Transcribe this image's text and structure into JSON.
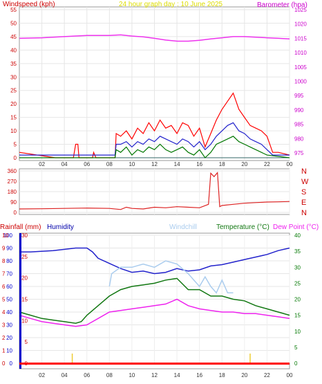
{
  "header": {
    "windspeed_label": "Windspeed (kph)",
    "graph_title": "24 hour graph day : 10 June 2025",
    "barometer_label": "Barometer (hpa)"
  },
  "lower_header": {
    "rainfall_label": "Rainfall (mm)",
    "humidity_label": "Humidity",
    "windchill_label": "Windchill",
    "temperature_label": "Temperature (°C)",
    "dewpoint_label": "Dew Point (°C)"
  },
  "colors": {
    "wind_gust": "#ff0000",
    "wind_avg": "#2222cc",
    "wind_low": "#007700",
    "barometer": "#ee33ee",
    "direction": "#dd2222",
    "humidity": "#2222cc",
    "windchill": "#aaccee",
    "temperature": "#117711",
    "dewpoint": "#ee22ee",
    "rain": "#ff0000",
    "axis_red": "#cc0000",
    "axis_pink": "#cc00cc",
    "axis_blue": "#0000cc",
    "axis_green": "#007700"
  },
  "chart_data": [
    {
      "type": "line",
      "name": "wind_and_barometer",
      "x_ticks": [
        "02",
        "04",
        "06",
        "08",
        "10",
        "12",
        "14",
        "16",
        "18",
        "20",
        "22",
        "00"
      ],
      "y_left_ticks": [
        "0",
        "5",
        "10",
        "15",
        "20",
        "25",
        "30",
        "35",
        "40",
        "45",
        "50",
        "55"
      ],
      "y_right_ticks": [
        "975",
        "980",
        "985",
        "990",
        "995",
        "1000",
        "1005",
        "1010",
        "1015",
        "1020",
        "1025"
      ],
      "ylim_left": [
        0,
        55
      ],
      "ylim_right": [
        975,
        1025
      ],
      "wind_gust": [
        [
          0,
          2
        ],
        [
          3.2,
          0
        ],
        [
          4.8,
          0
        ],
        [
          5.0,
          5
        ],
        [
          5.2,
          5
        ],
        [
          5.3,
          0
        ],
        [
          6.5,
          0
        ],
        [
          6.6,
          2
        ],
        [
          6.8,
          0
        ],
        [
          8.5,
          0
        ],
        [
          8.6,
          9
        ],
        [
          9,
          8
        ],
        [
          9.5,
          10
        ],
        [
          10,
          7
        ],
        [
          10.5,
          11
        ],
        [
          11,
          9
        ],
        [
          11.5,
          13
        ],
        [
          12,
          10
        ],
        [
          12.5,
          14
        ],
        [
          13,
          11
        ],
        [
          13.5,
          12
        ],
        [
          14,
          9
        ],
        [
          14.5,
          13
        ],
        [
          15,
          12
        ],
        [
          15.5,
          8
        ],
        [
          16,
          11
        ],
        [
          16.5,
          4
        ],
        [
          17,
          9
        ],
        [
          17.5,
          14
        ],
        [
          18,
          18
        ],
        [
          18.5,
          21
        ],
        [
          19,
          24
        ],
        [
          19.5,
          18
        ],
        [
          20,
          15
        ],
        [
          20.5,
          12
        ],
        [
          21,
          11
        ],
        [
          21.5,
          10
        ],
        [
          22,
          8
        ],
        [
          22.5,
          2
        ],
        [
          23,
          2
        ],
        [
          24,
          1
        ]
      ],
      "wind_avg": [
        [
          0,
          1
        ],
        [
          8.5,
          1
        ],
        [
          8.6,
          5
        ],
        [
          9,
          5
        ],
        [
          9.5,
          6
        ],
        [
          10,
          4
        ],
        [
          10.5,
          6
        ],
        [
          11,
          5
        ],
        [
          11.5,
          7
        ],
        [
          12,
          6
        ],
        [
          12.5,
          8
        ],
        [
          13,
          7
        ],
        [
          13.5,
          6
        ],
        [
          14,
          5
        ],
        [
          14.5,
          7
        ],
        [
          15,
          6
        ],
        [
          15.5,
          4
        ],
        [
          16,
          6
        ],
        [
          16.5,
          3
        ],
        [
          17,
          5
        ],
        [
          17.5,
          8
        ],
        [
          18,
          10
        ],
        [
          18.5,
          12
        ],
        [
          19,
          13
        ],
        [
          19.5,
          10
        ],
        [
          20,
          9
        ],
        [
          20.5,
          7
        ],
        [
          21,
          6
        ],
        [
          21.5,
          5
        ],
        [
          22,
          3
        ],
        [
          22.5,
          1
        ],
        [
          24,
          1
        ]
      ],
      "wind_low": [
        [
          0,
          0
        ],
        [
          8.5,
          0
        ],
        [
          8.6,
          3
        ],
        [
          9,
          2
        ],
        [
          9.5,
          4
        ],
        [
          10,
          1
        ],
        [
          10.5,
          3
        ],
        [
          11,
          2
        ],
        [
          11.5,
          4
        ],
        [
          12,
          3
        ],
        [
          12.5,
          5
        ],
        [
          13,
          3
        ],
        [
          13.5,
          2
        ],
        [
          14,
          3
        ],
        [
          14.5,
          4
        ],
        [
          15,
          2
        ],
        [
          15.5,
          1
        ],
        [
          16,
          3
        ],
        [
          16.5,
          0
        ],
        [
          17,
          2
        ],
        [
          17.5,
          5
        ],
        [
          18,
          6
        ],
        [
          18.5,
          7
        ],
        [
          19,
          8
        ],
        [
          19.5,
          6
        ],
        [
          20,
          5
        ],
        [
          20.5,
          4
        ],
        [
          21,
          3
        ],
        [
          21.5,
          2
        ],
        [
          22,
          1
        ],
        [
          24,
          0
        ]
      ],
      "barometer": [
        [
          0,
          1015.0
        ],
        [
          2,
          1015.2
        ],
        [
          4,
          1015.6
        ],
        [
          6,
          1016.0
        ],
        [
          8,
          1016.0
        ],
        [
          9,
          1016.2
        ],
        [
          10,
          1015.8
        ],
        [
          11,
          1015.5
        ],
        [
          12,
          1015.0
        ],
        [
          13,
          1014.4
        ],
        [
          14,
          1014.0
        ],
        [
          15,
          1014.0
        ],
        [
          16,
          1014.3
        ],
        [
          17,
          1014.8
        ],
        [
          18,
          1015.2
        ],
        [
          19,
          1015.6
        ],
        [
          20,
          1015.6
        ],
        [
          21,
          1015.4
        ],
        [
          22,
          1015.2
        ],
        [
          23,
          1015.0
        ],
        [
          24,
          1014.8
        ]
      ]
    },
    {
      "type": "line",
      "name": "wind_direction",
      "y_left_ticks": [
        "0",
        "90",
        "180",
        "270",
        "360"
      ],
      "y_right_ticks": [
        "N",
        "E",
        "S",
        "W",
        "N"
      ],
      "ylim": [
        0,
        360
      ],
      "direction": [
        [
          0,
          30
        ],
        [
          2,
          32
        ],
        [
          4,
          35
        ],
        [
          6,
          38
        ],
        [
          8,
          35
        ],
        [
          9,
          25
        ],
        [
          9.5,
          45
        ],
        [
          10,
          35
        ],
        [
          11,
          30
        ],
        [
          12,
          45
        ],
        [
          13,
          40
        ],
        [
          14,
          50
        ],
        [
          15,
          45
        ],
        [
          16,
          40
        ],
        [
          16.8,
          70
        ],
        [
          17.0,
          340
        ],
        [
          17.3,
          310
        ],
        [
          17.6,
          345
        ],
        [
          17.8,
          50
        ],
        [
          18,
          60
        ],
        [
          19,
          70
        ],
        [
          20,
          80
        ],
        [
          21,
          85
        ],
        [
          22,
          90
        ],
        [
          23,
          92
        ],
        [
          24,
          95
        ]
      ]
    },
    {
      "type": "line",
      "name": "temperature_humidity_rain",
      "x_ticks": [
        "02",
        "04",
        "06",
        "08",
        "10",
        "12",
        "14",
        "16",
        "18",
        "20",
        "22",
        "00"
      ],
      "y_rain_ticks": [
        "0",
        "1",
        "2",
        "3",
        "4",
        "5",
        "6",
        "7",
        "8",
        "9",
        "10"
      ],
      "y_humidity_ticks": [
        "0",
        "10",
        "20",
        "30",
        "40",
        "50",
        "60",
        "70",
        "80",
        "90",
        "100"
      ],
      "y_left_temp_ticks": [
        "0",
        "5",
        "10",
        "15",
        "20",
        "25",
        "30"
      ],
      "y_right_temp_ticks": [
        "0",
        "5",
        "10",
        "15",
        "20",
        "25",
        "30",
        "35",
        "40"
      ],
      "ylim_humidity": [
        0,
        100
      ],
      "ylim_temp": [
        0,
        40
      ],
      "humidity": [
        [
          0,
          87
        ],
        [
          1,
          87
        ],
        [
          3,
          88
        ],
        [
          4,
          89
        ],
        [
          5,
          90
        ],
        [
          6,
          90
        ],
        [
          6.5,
          87
        ],
        [
          7,
          82
        ],
        [
          8,
          78
        ],
        [
          9,
          74
        ],
        [
          10,
          71
        ],
        [
          11,
          72
        ],
        [
          12,
          70
        ],
        [
          13,
          71
        ],
        [
          14,
          74
        ],
        [
          15,
          72
        ],
        [
          16,
          73
        ],
        [
          17,
          76
        ],
        [
          18,
          77
        ],
        [
          19,
          79
        ],
        [
          20,
          81
        ],
        [
          21,
          83
        ],
        [
          22,
          85
        ],
        [
          23,
          88
        ],
        [
          24,
          90
        ]
      ],
      "temperature": [
        [
          0,
          16
        ],
        [
          1,
          15
        ],
        [
          2,
          14
        ],
        [
          3,
          13.5
        ],
        [
          4,
          13
        ],
        [
          5,
          12.5
        ],
        [
          5.5,
          13
        ],
        [
          6,
          15
        ],
        [
          7,
          18
        ],
        [
          8,
          21
        ],
        [
          9,
          23
        ],
        [
          10,
          24
        ],
        [
          11,
          24.5
        ],
        [
          12,
          25
        ],
        [
          13,
          26
        ],
        [
          14,
          26.5
        ],
        [
          15,
          23
        ],
        [
          16,
          23
        ],
        [
          17,
          21
        ],
        [
          18,
          21
        ],
        [
          19,
          20
        ],
        [
          20,
          19.5
        ],
        [
          21,
          18
        ],
        [
          22,
          17
        ],
        [
          23,
          16
        ],
        [
          24,
          15
        ]
      ],
      "windchill": [
        [
          8,
          24
        ],
        [
          8.2,
          28
        ],
        [
          9,
          30
        ],
        [
          10,
          30
        ],
        [
          11,
          31
        ],
        [
          12,
          30
        ],
        [
          13,
          32
        ],
        [
          14,
          31
        ],
        [
          15,
          28
        ],
        [
          15.5,
          26
        ],
        [
          16,
          24
        ],
        [
          16.5,
          27
        ],
        [
          17,
          24
        ],
        [
          17.5,
          22
        ],
        [
          18,
          26
        ],
        [
          18.5,
          22
        ],
        [
          19,
          22
        ]
      ],
      "dewpoint": [
        [
          0,
          15
        ],
        [
          1,
          14
        ],
        [
          2,
          13
        ],
        [
          3,
          12.5
        ],
        [
          4,
          12
        ],
        [
          5,
          11.5
        ],
        [
          6,
          12
        ],
        [
          7,
          14
        ],
        [
          8,
          16
        ],
        [
          9,
          16.5
        ],
        [
          10,
          17
        ],
        [
          11,
          17.5
        ],
        [
          12,
          18
        ],
        [
          13,
          18.5
        ],
        [
          14,
          20
        ],
        [
          15,
          18
        ],
        [
          16,
          17
        ],
        [
          17,
          16.5
        ],
        [
          18,
          16
        ],
        [
          19,
          16
        ],
        [
          20,
          15.5
        ],
        [
          21,
          15.5
        ],
        [
          22,
          15
        ],
        [
          23,
          14.5
        ],
        [
          24,
          14
        ]
      ],
      "rain_marks": [
        [
          4.7,
          1.3
        ],
        [
          20.5,
          1.3
        ]
      ]
    }
  ]
}
